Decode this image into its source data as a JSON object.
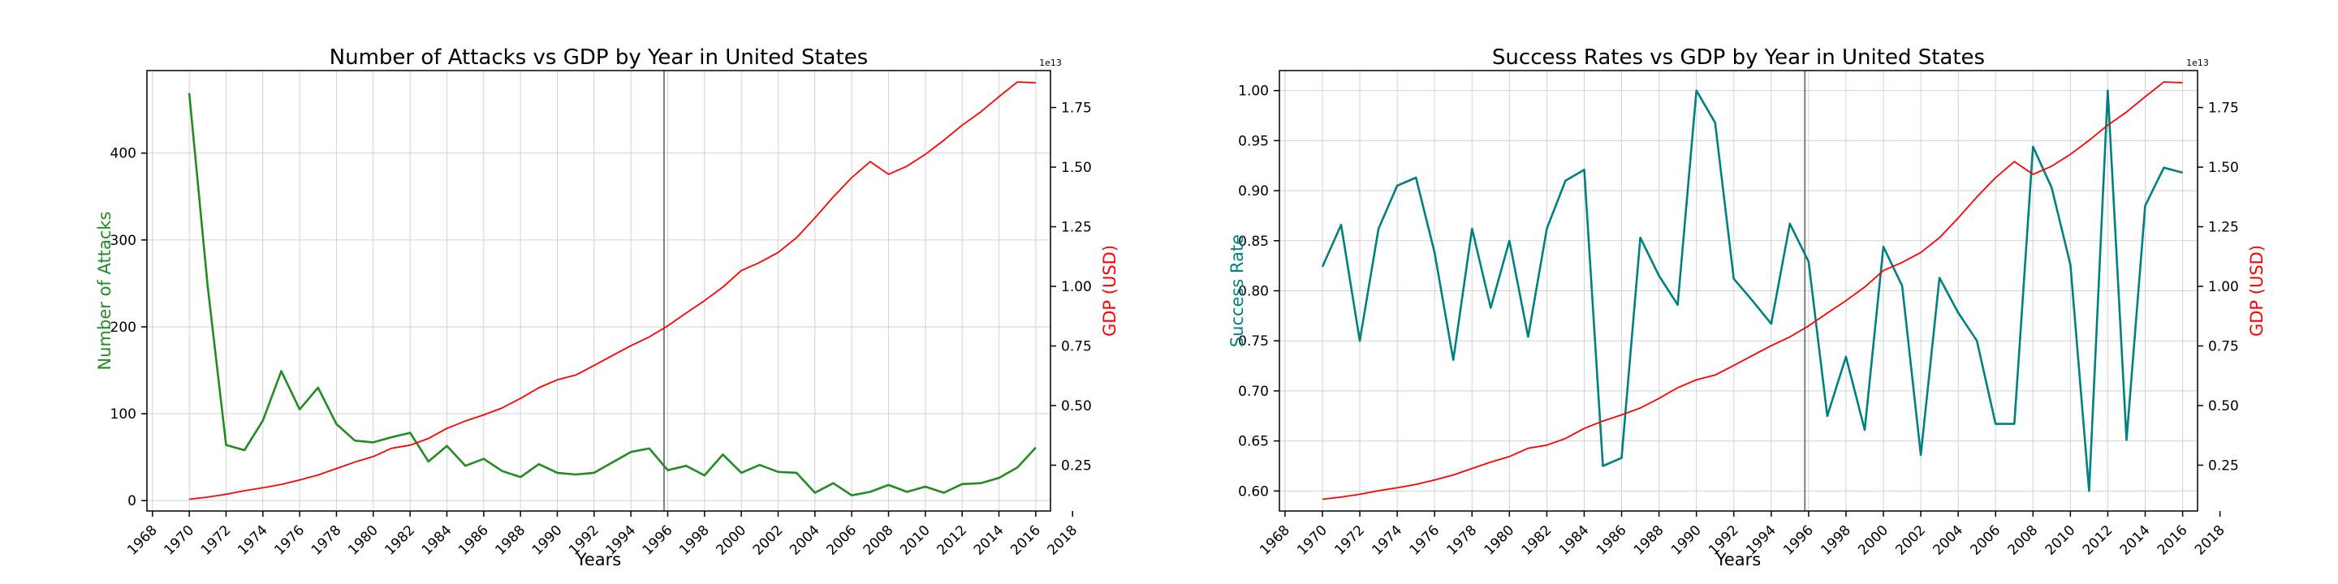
{
  "colors": {
    "attacks": "#228B22",
    "success": "#008080",
    "gdp": "#FF0000",
    "grid": "#d3d3d3",
    "axis": "#000000",
    "vline": "#808080"
  },
  "chart_data": [
    {
      "type": "line",
      "title": "Number of Attacks vs GDP by Year in United States",
      "xlabel": "Years",
      "ylabel_left": "Number of Attacks",
      "ylabel_right": "GDP (USD)",
      "right_axis_offset_text": "1e13",
      "grid": true,
      "xlim": [
        1967.7,
        2016.8
      ],
      "xticks": [
        1968,
        1970,
        1972,
        1974,
        1976,
        1978,
        1980,
        1982,
        1984,
        1986,
        1988,
        1990,
        1992,
        1994,
        1996,
        1998,
        2000,
        2002,
        2004,
        2006,
        2008,
        2010,
        2012,
        2014,
        2016,
        2018
      ],
      "ylim_left": [
        -12,
        495
      ],
      "yticks_left": [
        0,
        100,
        200,
        300,
        400
      ],
      "ylim_right": [
        0.0578,
        1.905
      ],
      "yticks_right": [
        0.25,
        0.5,
        0.75,
        1.0,
        1.25,
        1.5,
        1.75
      ],
      "yticks_right_labels": [
        "0.25",
        "0.50",
        "0.75",
        "1.00",
        "1.25",
        "1.50",
        "1.75"
      ],
      "vline_x": 1995.8,
      "x": [
        1970,
        1971,
        1972,
        1973,
        1974,
        1975,
        1976,
        1977,
        1978,
        1979,
        1980,
        1981,
        1982,
        1983,
        1984,
        1985,
        1986,
        1987,
        1988,
        1989,
        1990,
        1991,
        1992,
        1993,
        1994,
        1995,
        1996,
        1997,
        1998,
        1999,
        2000,
        2001,
        2002,
        2003,
        2004,
        2005,
        2006,
        2007,
        2008,
        2009,
        2010,
        2011,
        2012,
        2013,
        2014,
        2015,
        2016
      ],
      "series": [
        {
          "name": "Number of Attacks",
          "axis": "left",
          "color_key": "attacks",
          "values": [
            469,
            247,
            64,
            58,
            92,
            149,
            105,
            130,
            88,
            69,
            67,
            73,
            78,
            45,
            63,
            40,
            48,
            34,
            27,
            42,
            32,
            30,
            32,
            44,
            56,
            60,
            35,
            40,
            29,
            53,
            32,
            41,
            33,
            32,
            9,
            20,
            6,
            10,
            18,
            10,
            16,
            9,
            19,
            20,
            26,
            38,
            61
          ]
        },
        {
          "name": "GDP (USD)",
          "axis": "right",
          "color_key": "gdp",
          "values": [
            0.107,
            0.116,
            0.128,
            0.143,
            0.155,
            0.169,
            0.188,
            0.209,
            0.236,
            0.263,
            0.286,
            0.321,
            0.334,
            0.362,
            0.404,
            0.435,
            0.461,
            0.49,
            0.53,
            0.575,
            0.608,
            0.628,
            0.668,
            0.71,
            0.751,
            0.788,
            0.834,
            0.888,
            0.94,
            0.997,
            1.066,
            1.1,
            1.142,
            1.204,
            1.287,
            1.375,
            1.456,
            1.523,
            1.47,
            1.504,
            1.554,
            1.612,
            1.676,
            1.731,
            1.795,
            1.857,
            1.854
          ]
        }
      ]
    },
    {
      "type": "line",
      "title": "Success Rates vs GDP by Year in United States",
      "xlabel": "Years",
      "ylabel_left": "Success Rate",
      "ylabel_right": "GDP (USD)",
      "right_axis_offset_text": "1e13",
      "grid": true,
      "xlim": [
        1967.7,
        2016.8
      ],
      "xticks": [
        1968,
        1970,
        1972,
        1974,
        1976,
        1978,
        1980,
        1982,
        1984,
        1986,
        1988,
        1990,
        1992,
        1994,
        1996,
        1998,
        2000,
        2002,
        2004,
        2006,
        2008,
        2010,
        2012,
        2014,
        2016,
        2018
      ],
      "ylim_left": [
        0.58,
        1.02
      ],
      "yticks_left": [
        0.6,
        0.65,
        0.7,
        0.75,
        0.8,
        0.85,
        0.9,
        0.95,
        1.0
      ],
      "yticks_left_labels": [
        "0.60",
        "0.65",
        "0.70",
        "0.75",
        "0.80",
        "0.85",
        "0.90",
        "0.95",
        "1.00"
      ],
      "ylim_right": [
        0.0578,
        1.905
      ],
      "yticks_right": [
        0.25,
        0.5,
        0.75,
        1.0,
        1.25,
        1.5,
        1.75
      ],
      "yticks_right_labels": [
        "0.25",
        "0.50",
        "0.75",
        "1.00",
        "1.25",
        "1.50",
        "1.75"
      ],
      "vline_x": 1995.8,
      "x": [
        1970,
        1971,
        1972,
        1973,
        1974,
        1975,
        1976,
        1977,
        1978,
        1979,
        1980,
        1981,
        1982,
        1983,
        1984,
        1985,
        1986,
        1987,
        1988,
        1989,
        1990,
        1991,
        1992,
        1993,
        1994,
        1995,
        1996,
        1997,
        1998,
        1999,
        2000,
        2001,
        2002,
        2003,
        2004,
        2005,
        2006,
        2007,
        2008,
        2009,
        2010,
        2011,
        2012,
        2013,
        2014,
        2015,
        2016
      ],
      "series": [
        {
          "name": "Success Rate",
          "axis": "left",
          "color_key": "success",
          "values": [
            0.824,
            0.866,
            0.75,
            0.862,
            0.905,
            0.913,
            0.838,
            0.731,
            0.862,
            0.783,
            0.85,
            0.754,
            0.862,
            0.91,
            0.921,
            0.625,
            0.633,
            0.853,
            0.815,
            0.786,
            1.0,
            0.968,
            0.812,
            0.79,
            0.767,
            0.867,
            0.829,
            0.675,
            0.734,
            0.661,
            0.844,
            0.805,
            0.636,
            0.813,
            0.778,
            0.75,
            0.667,
            0.667,
            0.944,
            0.903,
            0.826,
            0.6,
            1.0,
            0.651,
            0.885,
            0.923,
            0.918
          ]
        },
        {
          "name": "GDP (USD)",
          "axis": "right",
          "color_key": "gdp",
          "values": [
            0.107,
            0.116,
            0.128,
            0.143,
            0.155,
            0.169,
            0.188,
            0.209,
            0.236,
            0.263,
            0.286,
            0.321,
            0.334,
            0.362,
            0.404,
            0.435,
            0.461,
            0.49,
            0.53,
            0.575,
            0.608,
            0.628,
            0.668,
            0.71,
            0.751,
            0.788,
            0.834,
            0.888,
            0.94,
            0.997,
            1.066,
            1.1,
            1.142,
            1.204,
            1.287,
            1.375,
            1.456,
            1.523,
            1.47,
            1.504,
            1.554,
            1.612,
            1.676,
            1.731,
            1.795,
            1.857,
            1.854
          ]
        }
      ]
    }
  ]
}
